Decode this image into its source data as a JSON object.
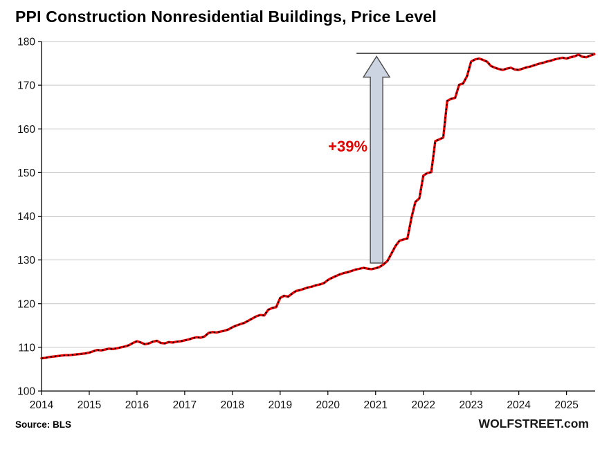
{
  "title": "PPI Construction Nonresidential Buildings, Price Level",
  "footer": {
    "source": "Source: BLS",
    "brand": "WOLFSTREET.com"
  },
  "colors": {
    "line": "#ee0000",
    "dash": "#000000",
    "grid": "#c6c6c6",
    "axis": "#000000",
    "ref_line": "#1a1a1a",
    "arrow_fill": "#ccd3e1",
    "arrow_stroke": "#4a4a4a",
    "annotation": "#e00000"
  },
  "chart_data": {
    "type": "line",
    "title": "PPI Construction Nonresidential Buildings, Price Level",
    "xlabel": "",
    "ylabel": "",
    "xlim": [
      2014,
      2025.6
    ],
    "ylim": [
      100,
      180
    ],
    "x_ticks": [
      2014,
      2015,
      2016,
      2017,
      2018,
      2019,
      2020,
      2021,
      2022,
      2023,
      2024,
      2025
    ],
    "y_ticks": [
      100,
      110,
      120,
      130,
      140,
      150,
      160,
      170,
      180
    ],
    "grid": "horizontal",
    "legend": "none",
    "x_start": 2014,
    "x_interval_years": 0.0833333333,
    "series": [
      {
        "name": "PPI Nonresidential Buildings (monthly, Jan 2014 onward)",
        "values": [
          107.5,
          107.6,
          107.8,
          107.9,
          108.0,
          108.1,
          108.2,
          108.2,
          108.3,
          108.4,
          108.5,
          108.6,
          108.8,
          109.1,
          109.4,
          109.3,
          109.5,
          109.7,
          109.6,
          109.8,
          110.0,
          110.2,
          110.5,
          111.0,
          111.4,
          111.1,
          110.7,
          110.9,
          111.3,
          111.5,
          111.0,
          110.9,
          111.2,
          111.1,
          111.3,
          111.4,
          111.6,
          111.8,
          112.1,
          112.3,
          112.2,
          112.5,
          113.3,
          113.5,
          113.4,
          113.6,
          113.8,
          114.1,
          114.6,
          115.0,
          115.3,
          115.6,
          116.1,
          116.6,
          117.1,
          117.4,
          117.3,
          118.6,
          119.0,
          119.2,
          121.3,
          121.8,
          121.6,
          122.3,
          122.9,
          123.1,
          123.4,
          123.7,
          123.9,
          124.2,
          124.4,
          124.7,
          125.4,
          125.9,
          126.3,
          126.7,
          127.0,
          127.2,
          127.5,
          127.8,
          128.0,
          128.2,
          128.0,
          127.9,
          128.1,
          128.4,
          129.0,
          129.8,
          131.5,
          133.2,
          134.4,
          134.7,
          134.9,
          139.6,
          143.3,
          144.1,
          149.3,
          149.9,
          150.1,
          157.2,
          157.6,
          158.0,
          166.4,
          166.9,
          167.1,
          170.1,
          170.4,
          172.1,
          175.4,
          175.9,
          176.1,
          175.8,
          175.4,
          174.4,
          174.0,
          173.7,
          173.5,
          173.8,
          174.0,
          173.6,
          173.5,
          173.8,
          174.1,
          174.3,
          174.6,
          174.9,
          175.1,
          175.4,
          175.6,
          175.9,
          176.1,
          176.3,
          176.1,
          176.4,
          176.6,
          177.0,
          176.5,
          176.4,
          176.8,
          177.1
        ]
      }
    ],
    "annotations": {
      "pct_label": {
        "text": "+39%",
        "x": 2020.83,
        "y": 154.8
      },
      "arrow": {
        "x": 2021.02,
        "y_start": 129.3,
        "y_end": 176.6
      },
      "ref_line": {
        "y": 177.3,
        "x_start": 2020.6,
        "x_end": 2025.6
      }
    }
  }
}
